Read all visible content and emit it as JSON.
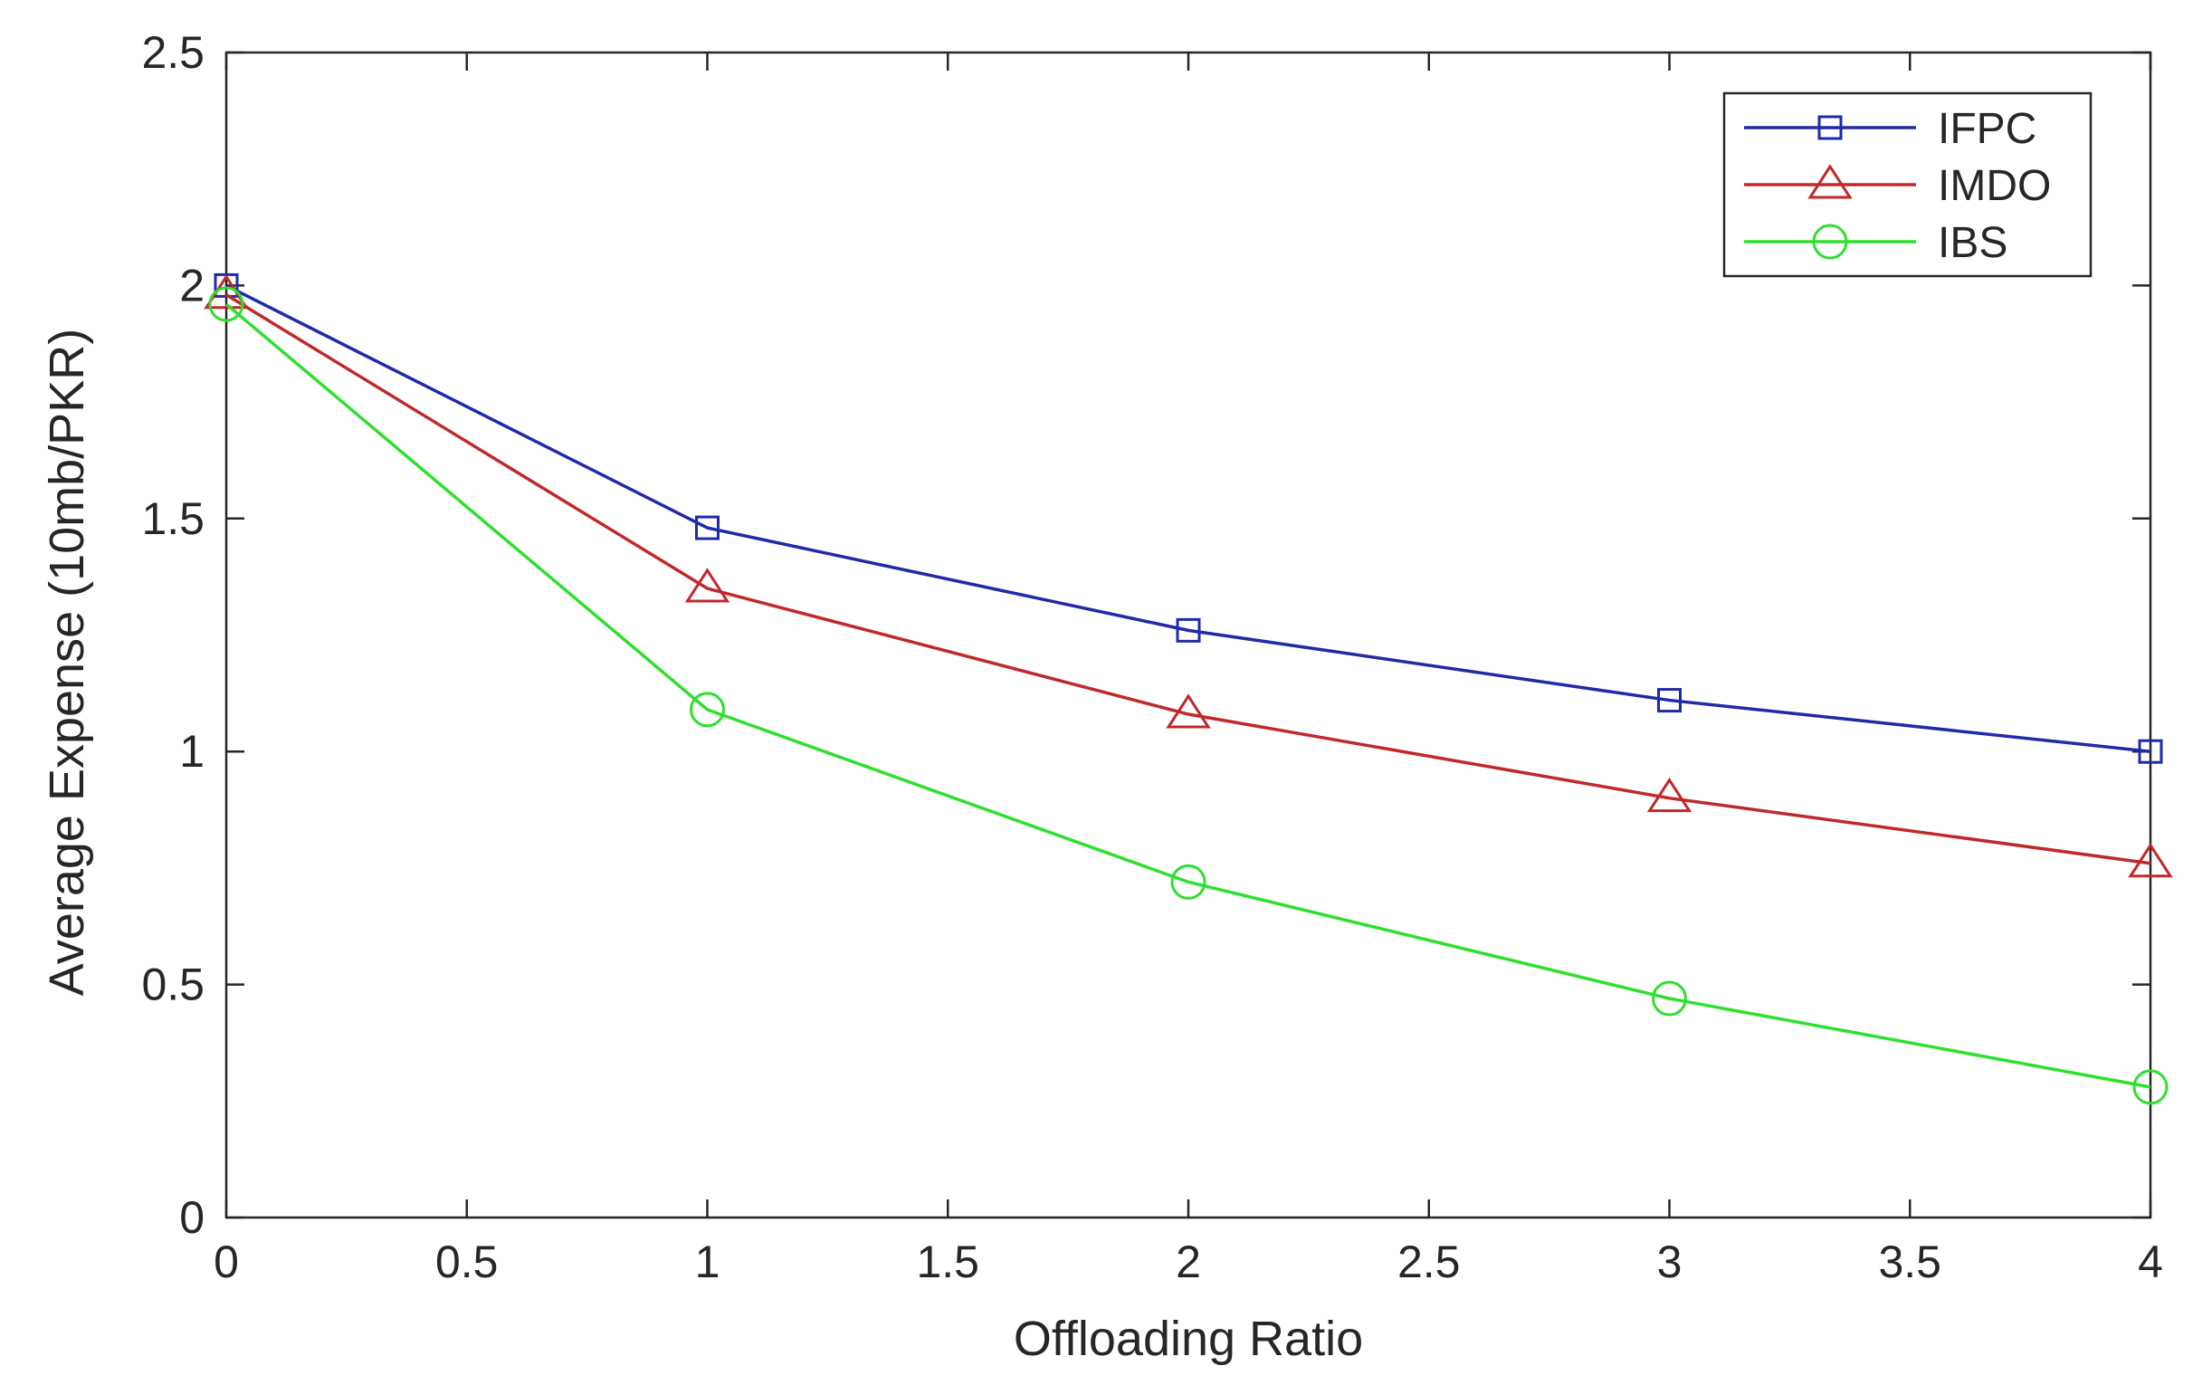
{
  "chart_data": {
    "type": "line",
    "title": "",
    "xlabel": "Offloading Ratio",
    "ylabel": "Average Expense (10mb/PKR)",
    "xlim": [
      0,
      4
    ],
    "ylim": [
      0,
      2.5
    ],
    "xticks": [
      0,
      0.5,
      1,
      1.5,
      2,
      2.5,
      3,
      3.5,
      4
    ],
    "xtick_labels": [
      "0",
      "0.5",
      "1",
      "1.5",
      "2",
      "2.5",
      "3",
      "3.5",
      "4"
    ],
    "yticks": [
      0,
      0.5,
      1,
      1.5,
      2,
      2.5
    ],
    "ytick_labels": [
      "0",
      "0.5",
      "1",
      "1.5",
      "2",
      "2.5"
    ],
    "grid": false,
    "legend_position": "top-right",
    "x": [
      0,
      1,
      2,
      3,
      4
    ],
    "series": [
      {
        "name": "IFPC",
        "marker": "square",
        "color": "#1f2aa8",
        "values": [
          2.0,
          1.48,
          1.26,
          1.11,
          1.0
        ]
      },
      {
        "name": "IMDO",
        "marker": "triangle",
        "color": "#c0282a",
        "values": [
          1.98,
          1.35,
          1.08,
          0.9,
          0.76
        ]
      },
      {
        "name": "IBS",
        "marker": "circle",
        "color": "#2ee02e",
        "values": [
          1.96,
          1.09,
          0.72,
          0.47,
          0.28
        ]
      }
    ]
  }
}
